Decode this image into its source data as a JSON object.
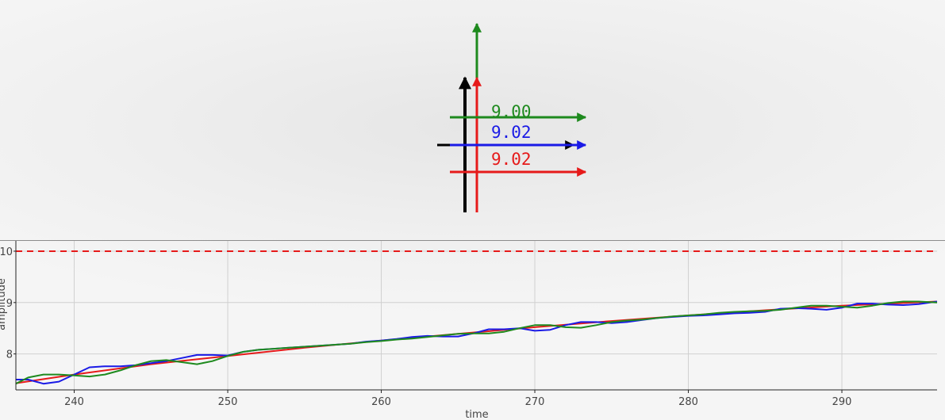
{
  "gauge": {
    "readouts": [
      {
        "name": "green",
        "value": "9.00",
        "color": "#1e8a1e"
      },
      {
        "name": "blue",
        "value": "9.02",
        "color": "#1a1ae6"
      },
      {
        "name": "red",
        "value": "9.02",
        "color": "#e61a1a"
      }
    ],
    "black_color": "#000000"
  },
  "chart_data": {
    "type": "line",
    "title": "",
    "xlabel": "time",
    "ylabel": "amplitude",
    "xlim": [
      236.2,
      296.2
    ],
    "ylim": [
      7.3,
      10.2
    ],
    "x_ticks": [
      240,
      250,
      260,
      270,
      280,
      290
    ],
    "y_ticks": [
      8,
      9,
      10
    ],
    "grid": true,
    "reference_line": {
      "y": 10,
      "style": "dashed",
      "color": "#e61a1a"
    },
    "series": [
      {
        "color": "#e61a1a",
        "style": "solid",
        "x": [
          236.2,
          240,
          245,
          250,
          255,
          260,
          265,
          270,
          275,
          280,
          285,
          290,
          296.2
        ],
        "y": [
          7.43,
          7.6,
          7.8,
          7.96,
          8.12,
          8.26,
          8.39,
          8.52,
          8.64,
          8.75,
          8.85,
          8.94,
          9.02
        ]
      },
      {
        "color": "#1a1ae6",
        "style": "solid",
        "x": [
          236.2,
          237,
          238,
          239,
          240,
          241,
          242,
          243,
          244,
          245,
          246,
          247,
          248,
          249,
          250,
          251,
          252,
          253,
          254,
          255,
          256,
          257,
          258,
          259,
          260,
          261,
          262,
          263,
          264,
          265,
          266,
          267,
          268,
          269,
          270,
          271,
          272,
          273,
          274,
          275,
          276,
          277,
          278,
          279,
          280,
          281,
          282,
          283,
          284,
          285,
          286,
          287,
          288,
          289,
          290,
          291,
          292,
          293,
          294,
          295,
          296.2
        ],
        "y": [
          7.5,
          7.5,
          7.42,
          7.46,
          7.6,
          7.74,
          7.76,
          7.76,
          7.78,
          7.82,
          7.86,
          7.92,
          7.98,
          7.98,
          7.97,
          8.04,
          8.08,
          8.1,
          8.12,
          8.14,
          8.16,
          8.18,
          8.2,
          8.24,
          8.26,
          8.29,
          8.33,
          8.35,
          8.34,
          8.34,
          8.4,
          8.48,
          8.48,
          8.5,
          8.45,
          8.47,
          8.56,
          8.62,
          8.62,
          8.6,
          8.62,
          8.66,
          8.7,
          8.72,
          8.74,
          8.75,
          8.77,
          8.79,
          8.8,
          8.82,
          8.88,
          8.89,
          8.88,
          8.86,
          8.9,
          8.98,
          8.98,
          8.96,
          8.95,
          8.97,
          9.02
        ]
      },
      {
        "color": "#1e8a1e",
        "style": "solid",
        "x": [
          236.2,
          237,
          238,
          239,
          240,
          241,
          242,
          243,
          244,
          245,
          246,
          247,
          248,
          249,
          250,
          251,
          252,
          253,
          254,
          255,
          256,
          257,
          258,
          259,
          260,
          261,
          262,
          263,
          264,
          265,
          266,
          267,
          268,
          269,
          270,
          271,
          272,
          273,
          274,
          275,
          276,
          277,
          278,
          279,
          280,
          281,
          282,
          283,
          284,
          285,
          286,
          287,
          288,
          289,
          290,
          291,
          292,
          293,
          294,
          295,
          296.2
        ],
        "y": [
          7.42,
          7.54,
          7.6,
          7.6,
          7.58,
          7.56,
          7.6,
          7.68,
          7.78,
          7.86,
          7.88,
          7.84,
          7.8,
          7.86,
          7.96,
          8.04,
          8.08,
          8.1,
          8.12,
          8.14,
          8.16,
          8.18,
          8.2,
          8.23,
          8.25,
          8.28,
          8.3,
          8.33,
          8.36,
          8.39,
          8.4,
          8.4,
          8.43,
          8.5,
          8.56,
          8.56,
          8.52,
          8.51,
          8.56,
          8.62,
          8.65,
          8.67,
          8.7,
          8.73,
          8.75,
          8.77,
          8.8,
          8.82,
          8.83,
          8.84,
          8.86,
          8.9,
          8.94,
          8.94,
          8.92,
          8.9,
          8.94,
          8.99,
          9.02,
          9.02,
          9.0
        ]
      }
    ]
  }
}
